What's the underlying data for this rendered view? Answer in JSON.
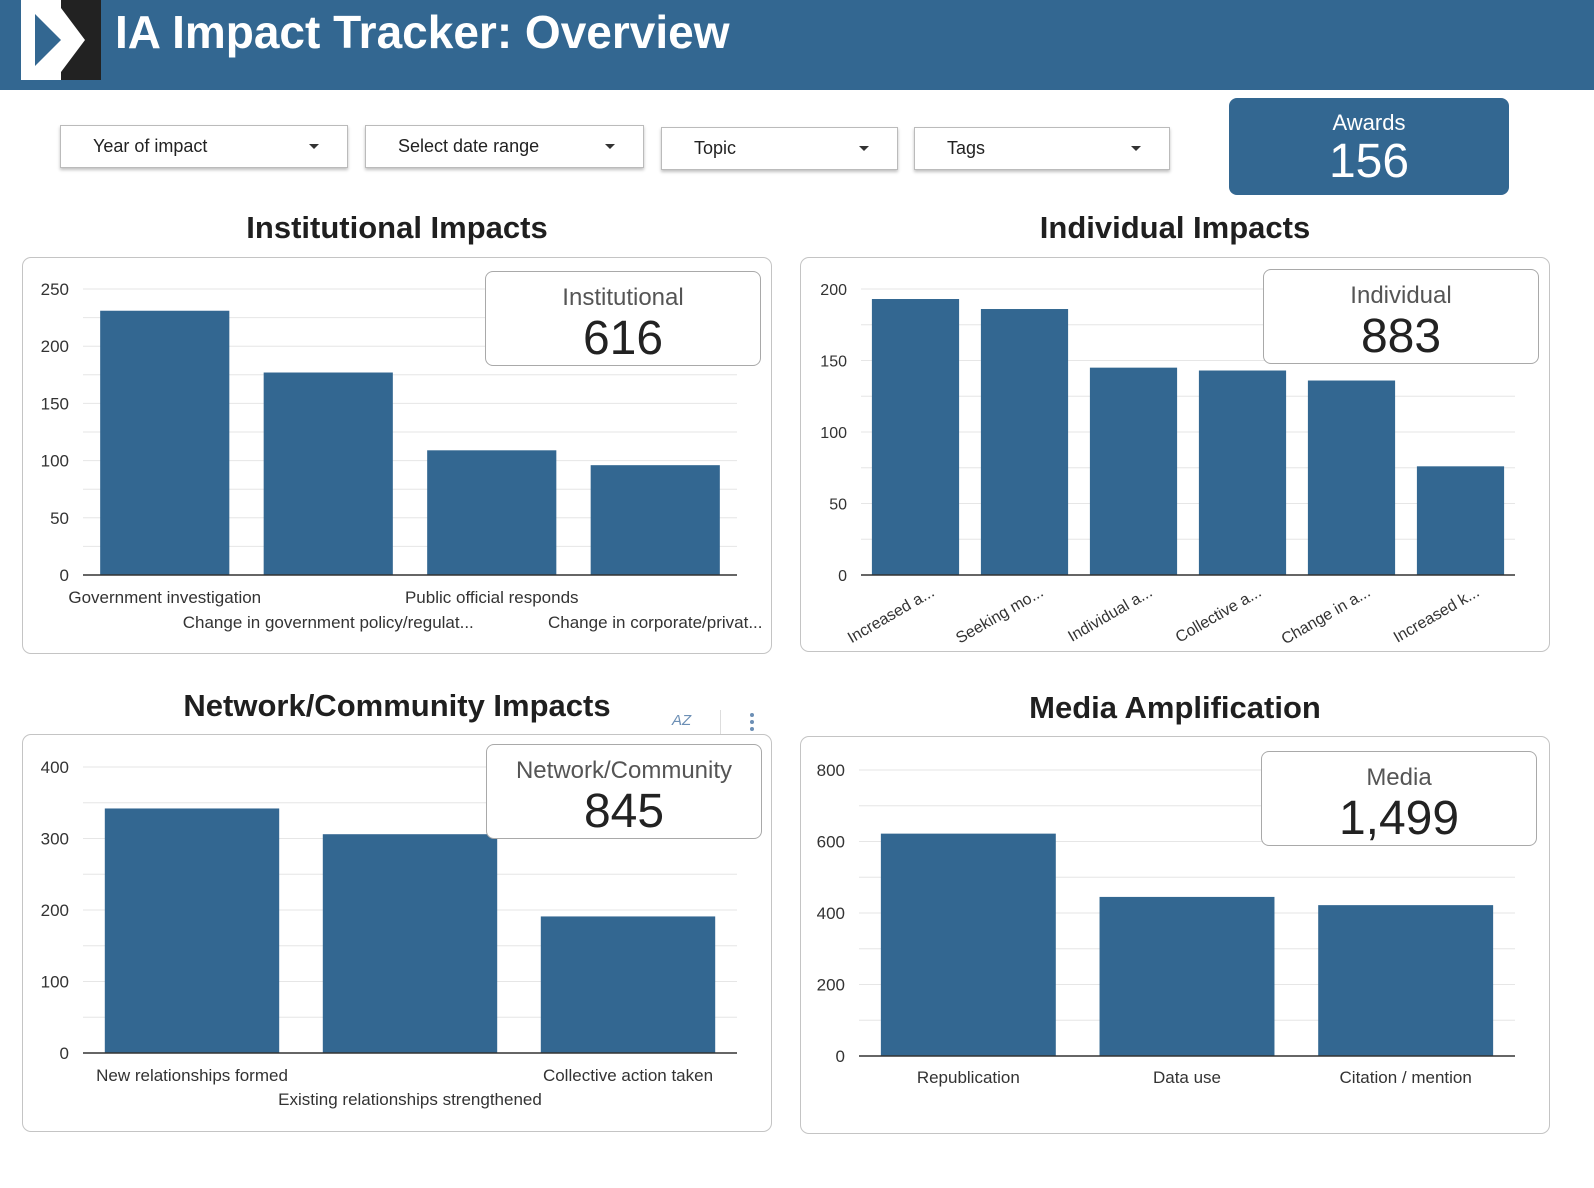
{
  "header": {
    "title": "IA Impact Tracker: Overview"
  },
  "filters": [
    {
      "label": "Year of impact"
    },
    {
      "label": "Select date range"
    },
    {
      "label": "Topic"
    },
    {
      "label": "Tags"
    }
  ],
  "awards": {
    "label": "Awards",
    "value": "156"
  },
  "colors": {
    "bar": "#336791",
    "header": "#336791",
    "grid": "#e6e6e6"
  },
  "sections": {
    "institutional": {
      "title": "Institutional Impacts",
      "score_label": "Institutional",
      "score_value": "616"
    },
    "individual": {
      "title": "Individual Impacts",
      "score_label": "Individual",
      "score_value": "883"
    },
    "network": {
      "title": "Network/Community Impacts",
      "score_label": "Network/Community",
      "score_value": "845"
    },
    "media": {
      "title": "Media Amplification",
      "score_label": "Media",
      "score_value": "1,499"
    }
  },
  "toolbar": {
    "sort_icon": "sort-az-icon",
    "more_icon": "more-vert-icon",
    "sort_glyph": "AZ"
  },
  "chart_data": [
    {
      "id": "institutional",
      "type": "bar",
      "categories": [
        "Government investigation",
        "Change in government policy/regulat...",
        "Public official responds",
        "Change in corporate/privat..."
      ],
      "values": [
        231,
        177,
        109,
        96
      ],
      "ylim": [
        0,
        250
      ],
      "yticks": [
        0,
        50,
        100,
        150,
        200,
        250
      ],
      "grid": true,
      "label_style": "staggered",
      "title": "",
      "xlabel": "",
      "ylabel": ""
    },
    {
      "id": "individual",
      "type": "bar",
      "categories": [
        "Increased a...",
        "Seeking mo...",
        "Individual a...",
        "Collective a...",
        "Change in a...",
        "Increased k..."
      ],
      "values": [
        193,
        186,
        145,
        143,
        136,
        76
      ],
      "ylim": [
        0,
        200
      ],
      "yticks": [
        0,
        50,
        100,
        150,
        200
      ],
      "grid": true,
      "label_style": "rotated",
      "title": "",
      "xlabel": "",
      "ylabel": ""
    },
    {
      "id": "network",
      "type": "bar",
      "categories": [
        "New relationships formed",
        "Existing relationships strengthened",
        "Collective action taken"
      ],
      "values": [
        342,
        306,
        191
      ],
      "ylim": [
        0,
        400
      ],
      "yticks": [
        0,
        100,
        200,
        300,
        400
      ],
      "grid": true,
      "label_style": "staggered",
      "title": "",
      "xlabel": "",
      "ylabel": ""
    },
    {
      "id": "media",
      "type": "bar",
      "categories": [
        "Republication",
        "Data use",
        "Citation / mention"
      ],
      "values": [
        622,
        445,
        422
      ],
      "ylim": [
        0,
        800
      ],
      "yticks": [
        0,
        200,
        400,
        600,
        800
      ],
      "grid": true,
      "label_style": "normal",
      "title": "",
      "xlabel": "",
      "ylabel": ""
    }
  ]
}
